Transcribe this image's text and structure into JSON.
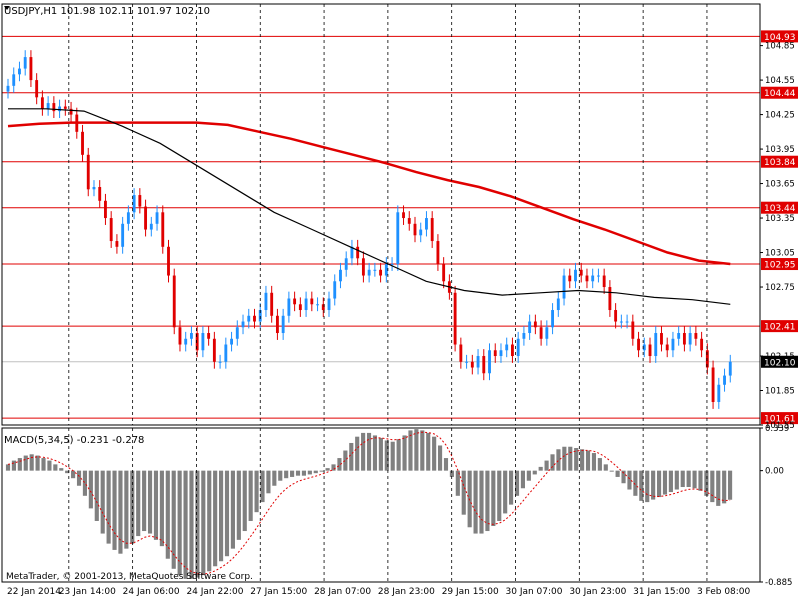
{
  "chart_data": [
    {
      "type": "candlestick",
      "symbol_header": "USDJPY,H1  101.98 102.11 101.97 102.10",
      "ylim": [
        101.55,
        105.09
      ],
      "y_tick_labels": [
        "104.85",
        "104.55",
        "104.25",
        "103.95",
        "103.65",
        "103.35",
        "103.05",
        "102.75",
        "102.15",
        "101.85",
        "101.55"
      ],
      "y_ticks": [
        104.85,
        104.55,
        104.25,
        103.95,
        103.65,
        103.35,
        103.05,
        102.75,
        102.15,
        101.85,
        101.55
      ],
      "x_tick_labels": [
        "22 Jan 2014",
        "23 Jan 14:00",
        "24 Jan 06:00",
        "24 Jan 22:00",
        "27 Jan 15:00",
        "28 Jan 07:00",
        "28 Jan 23:00",
        "29 Jan 15:00",
        "30 Jan 07:00",
        "30 Jan 23:00",
        "31 Jan 15:00",
        "3 Feb 08:00"
      ],
      "grid": "vertical dashed separators",
      "horizontal_levels": [
        {
          "label": "104.93",
          "value": 104.93
        },
        {
          "label": "104.44",
          "value": 104.44
        },
        {
          "label": "103.84",
          "value": 103.84
        },
        {
          "label": "103.44",
          "value": 103.44
        },
        {
          "label": "102.95",
          "value": 102.95
        },
        {
          "label": "102.41",
          "value": 102.41
        },
        {
          "label": "101.61",
          "value": 101.61
        }
      ],
      "current_price": {
        "label": "102.10",
        "value": 102.1
      },
      "closes": [
        104.5,
        104.6,
        104.65,
        104.75,
        104.55,
        104.4,
        104.3,
        104.35,
        104.28,
        104.32,
        104.3,
        104.25,
        104.1,
        103.9,
        103.6,
        103.62,
        103.5,
        103.35,
        103.15,
        103.1,
        103.3,
        103.4,
        103.55,
        103.45,
        103.25,
        103.3,
        103.4,
        103.1,
        102.85,
        102.4,
        102.25,
        102.3,
        102.35,
        102.2,
        102.35,
        102.3,
        102.1,
        102.1,
        102.25,
        102.3,
        102.4,
        102.45,
        102.5,
        102.45,
        102.55,
        102.7,
        102.5,
        102.35,
        102.5,
        102.65,
        102.6,
        102.55,
        102.65,
        102.6,
        102.6,
        102.55,
        102.65,
        102.8,
        102.9,
        103.0,
        103.1,
        103.0,
        102.85,
        102.9,
        102.9,
        102.85,
        102.95,
        102.95,
        103.4,
        103.35,
        103.3,
        103.2,
        103.25,
        103.35,
        103.15,
        102.95,
        102.8,
        102.7,
        102.25,
        102.1,
        102.1,
        102.05,
        102.15,
        102.0,
        102.2,
        102.15,
        102.2,
        102.25,
        102.15,
        102.3,
        102.35,
        102.45,
        102.4,
        102.3,
        102.4,
        102.55,
        102.65,
        102.85,
        102.8,
        102.9,
        102.85,
        102.8,
        102.85,
        102.85,
        102.75,
        102.55,
        102.45,
        102.45,
        102.45,
        102.3,
        102.2,
        102.25,
        102.15,
        102.35,
        102.25,
        102.2,
        102.3,
        102.35,
        102.25,
        102.35,
        102.3,
        102.2,
        102.05,
        101.75,
        101.9,
        101.98,
        102.1
      ],
      "moving_averages": [
        {
          "color": "#e00000",
          "values": [
            104.15,
            104.17,
            104.18,
            104.18,
            104.18,
            104.18,
            104.18,
            104.16,
            104.1,
            104.04,
            103.97,
            103.9,
            103.83,
            103.75,
            103.68,
            103.62,
            103.54,
            103.44,
            103.34,
            103.25,
            103.15,
            103.05,
            102.98,
            102.95
          ]
        },
        {
          "color": "#000000",
          "values": [
            104.3,
            104.3,
            104.28,
            104.15,
            104.0,
            103.8,
            103.6,
            103.4,
            103.25,
            103.1,
            102.95,
            102.8,
            102.72,
            102.68,
            102.7,
            102.72,
            102.7,
            102.66,
            102.64,
            102.6
          ]
        }
      ]
    },
    {
      "type": "bar",
      "title": "MACD(5,34,5) -0.231 -0.278",
      "ylim": [
        -0.885,
        0.339
      ],
      "y_tick_labels": [
        "0.339",
        "0.00",
        "-0.885"
      ],
      "y_ticks": [
        0.339,
        0.0,
        -0.885
      ],
      "values": [
        0.05,
        0.08,
        0.1,
        0.12,
        0.13,
        0.12,
        0.1,
        0.08,
        0.05,
        0.02,
        -0.02,
        -0.06,
        -0.12,
        -0.2,
        -0.3,
        -0.4,
        -0.5,
        -0.58,
        -0.63,
        -0.66,
        -0.62,
        -0.58,
        -0.52,
        -0.48,
        -0.5,
        -0.55,
        -0.6,
        -0.7,
        -0.78,
        -0.83,
        -0.86,
        -0.86,
        -0.85,
        -0.83,
        -0.8,
        -0.76,
        -0.72,
        -0.68,
        -0.62,
        -0.55,
        -0.48,
        -0.4,
        -0.33,
        -0.25,
        -0.18,
        -0.12,
        -0.08,
        -0.06,
        -0.05,
        -0.04,
        -0.04,
        -0.03,
        -0.02,
        0.0,
        0.02,
        0.05,
        0.1,
        0.16,
        0.22,
        0.27,
        0.3,
        0.3,
        0.28,
        0.26,
        0.24,
        0.23,
        0.25,
        0.28,
        0.32,
        0.33,
        0.32,
        0.3,
        0.27,
        0.2,
        0.1,
        -0.05,
        -0.2,
        -0.35,
        -0.45,
        -0.5,
        -0.5,
        -0.48,
        -0.44,
        -0.4,
        -0.34,
        -0.27,
        -0.2,
        -0.14,
        -0.08,
        -0.03,
        0.03,
        0.08,
        0.13,
        0.17,
        0.19,
        0.19,
        0.18,
        0.17,
        0.16,
        0.14,
        0.1,
        0.05,
        0.0,
        -0.05,
        -0.1,
        -0.15,
        -0.2,
        -0.24,
        -0.25,
        -0.23,
        -0.21,
        -0.19,
        -0.17,
        -0.15,
        -0.13,
        -0.13,
        -0.14,
        -0.16,
        -0.2,
        -0.25,
        -0.28,
        -0.26,
        -0.231
      ],
      "signal_line": {
        "color": "#e00000",
        "style": "dotted"
      }
    }
  ],
  "footer": {
    "copyright": "MetaTrader, © 2001-2013, MetaQuotes Software Corp."
  },
  "colors": {
    "bull": "#1e90ff",
    "bear": "#e00000",
    "level": "#e00000",
    "ma_slow": "#e00000",
    "ma_fast": "#000000",
    "macd_bar": "#808080",
    "current": "#000000"
  }
}
